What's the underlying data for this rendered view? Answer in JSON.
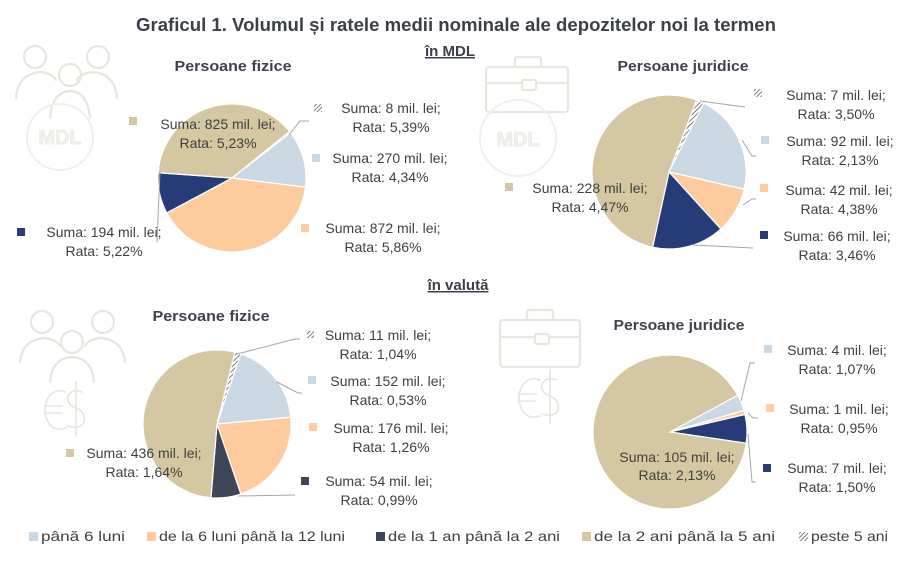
{
  "figure": {
    "title": "Graficul 1. Volumul și ratele medii nominale ale depozitelor noi la termen",
    "sections": {
      "mdl": "în MDL",
      "valuta": "în valută"
    },
    "coin_text": "MDL",
    "legend": [
      {
        "label": "până 6 luni",
        "color": "#c9d8e3"
      },
      {
        "label": "de la 6 luni până la 12 luni",
        "color": "#fdcb9e"
      },
      {
        "label": "de la 1 an până la 2 ani",
        "color": "#3d4557"
      },
      {
        "label": "de la 2 ani până la 5 ani",
        "color": "#d4c7a1"
      },
      {
        "label": "peste 5 ani",
        "color": "hatch"
      }
    ]
  },
  "chart_data": [
    {
      "type": "pie",
      "section": "în MDL",
      "title": "Persoane fizice",
      "unit": "mil. lei",
      "legend": "bottom",
      "slices": [
        {
          "category": "peste 5 ani",
          "suma": 8,
          "rata": 5.39,
          "color": "hatch",
          "label_suma": "Suma: 8 mil. lei;",
          "label_rata": "Rata: 5,39%"
        },
        {
          "category": "până 6 luni",
          "suma": 270,
          "rata": 4.34,
          "color": "#c9d8e3",
          "label_suma": "Suma: 270 mil. lei;",
          "label_rata": "Rata: 4,34%"
        },
        {
          "category": "de la 6 luni până la 12 luni",
          "suma": 872,
          "rata": 5.86,
          "color": "#fdcb9e",
          "label_suma": "Suma: 872 mil. lei;",
          "label_rata": "Rata: 5,86%"
        },
        {
          "category": "de la 1 an până la 2 ani",
          "suma": 194,
          "rata": 5.22,
          "color": "#263c78",
          "label_suma": "Suma: 194 mil. lei;",
          "label_rata": "Rata: 5,22%"
        },
        {
          "category": "de la 2 ani până la 5 ani",
          "suma": 825,
          "rata": 5.23,
          "color": "#d4c7a1",
          "label_suma": "Suma: 825 mil. lei;",
          "label_rata": "Rata: 5,23%"
        }
      ]
    },
    {
      "type": "pie",
      "section": "în MDL",
      "title": "Persoane juridice",
      "unit": "mil. lei",
      "legend": "bottom",
      "slices": [
        {
          "category": "peste 5 ani",
          "suma": 7,
          "rata": 3.5,
          "color": "hatch",
          "label_suma": "Suma: 7 mil. lei;",
          "label_rata": "Rata: 3,50%"
        },
        {
          "category": "până 6 luni",
          "suma": 92,
          "rata": 2.13,
          "color": "#c9d8e3",
          "label_suma": "Suma: 92 mil. lei;",
          "label_rata": "Rata: 2,13%"
        },
        {
          "category": "de la 6 luni până la 12 luni",
          "suma": 42,
          "rata": 4.38,
          "color": "#fdcb9e",
          "label_suma": "Suma: 42 mil. lei;",
          "label_rata": "Rata: 4,38%"
        },
        {
          "category": "de la 1 an până la 2 ani",
          "suma": 66,
          "rata": 3.46,
          "color": "#263c78",
          "label_suma": "Suma: 66 mil. lei;",
          "label_rata": "Rata: 3,46%"
        },
        {
          "category": "de la 2 ani până la 5 ani",
          "suma": 228,
          "rata": 4.47,
          "color": "#d4c7a1",
          "label_suma": "Suma: 228 mil. lei;",
          "label_rata": "Rata: 4,47%"
        }
      ]
    },
    {
      "type": "pie",
      "section": "în valută",
      "title": "Persoane fizice",
      "unit": "mil. lei",
      "legend": "bottom",
      "slices": [
        {
          "category": "peste 5 ani",
          "suma": 11,
          "rata": 1.04,
          "color": "hatch",
          "label_suma": "Suma: 11 mil. lei;",
          "label_rata": "Rata: 1,04%"
        },
        {
          "category": "până 6 luni",
          "suma": 152,
          "rata": 0.53,
          "color": "#c9d8e3",
          "label_suma": "Suma: 152 mil. lei;",
          "label_rata": "Rata: 0,53%"
        },
        {
          "category": "de la 6 luni până la 12 luni",
          "suma": 176,
          "rata": 1.26,
          "color": "#fdcb9e",
          "label_suma": "Suma: 176 mil. lei;",
          "label_rata": "Rata: 1,26%"
        },
        {
          "category": "de la 1 an până la 2 ani",
          "suma": 54,
          "rata": 0.99,
          "color": "#3d4557",
          "label_suma": "Suma: 54 mil. lei;",
          "label_rata": "Rata: 0,99%"
        },
        {
          "category": "de la 2 ani până la 5 ani",
          "suma": 436,
          "rata": 1.64,
          "color": "#d4c7a1",
          "label_suma": "Suma: 436 mil. lei;",
          "label_rata": "Rata: 1,64%"
        }
      ]
    },
    {
      "type": "pie",
      "section": "în valută",
      "title": "Persoane juridice",
      "unit": "mil. lei",
      "legend": "bottom",
      "slices": [
        {
          "category": "până 6 luni",
          "suma": 4,
          "rata": 1.07,
          "color": "#c9d8e3",
          "label_suma": "Suma: 4 mil. lei;",
          "label_rata": "Rata: 1,07%"
        },
        {
          "category": "de la 6 luni până la 12 luni",
          "suma": 1,
          "rata": 0.95,
          "color": "#fdcb9e",
          "label_suma": "Suma: 1 mil. lei;",
          "label_rata": "Rata: 0,95%"
        },
        {
          "category": "de la 1 an până la 2 ani",
          "suma": 7,
          "rata": 1.5,
          "color": "#273a7a",
          "label_suma": "Suma: 7 mil. lei;",
          "label_rata": "Rata: 1,50%"
        },
        {
          "category": "de la 2 ani până la 5 ani",
          "suma": 105,
          "rata": 2.13,
          "color": "#d4c7a1",
          "label_suma": "Suma: 105 mil. lei;",
          "label_rata": "Rata: 2,13%"
        }
      ]
    }
  ]
}
